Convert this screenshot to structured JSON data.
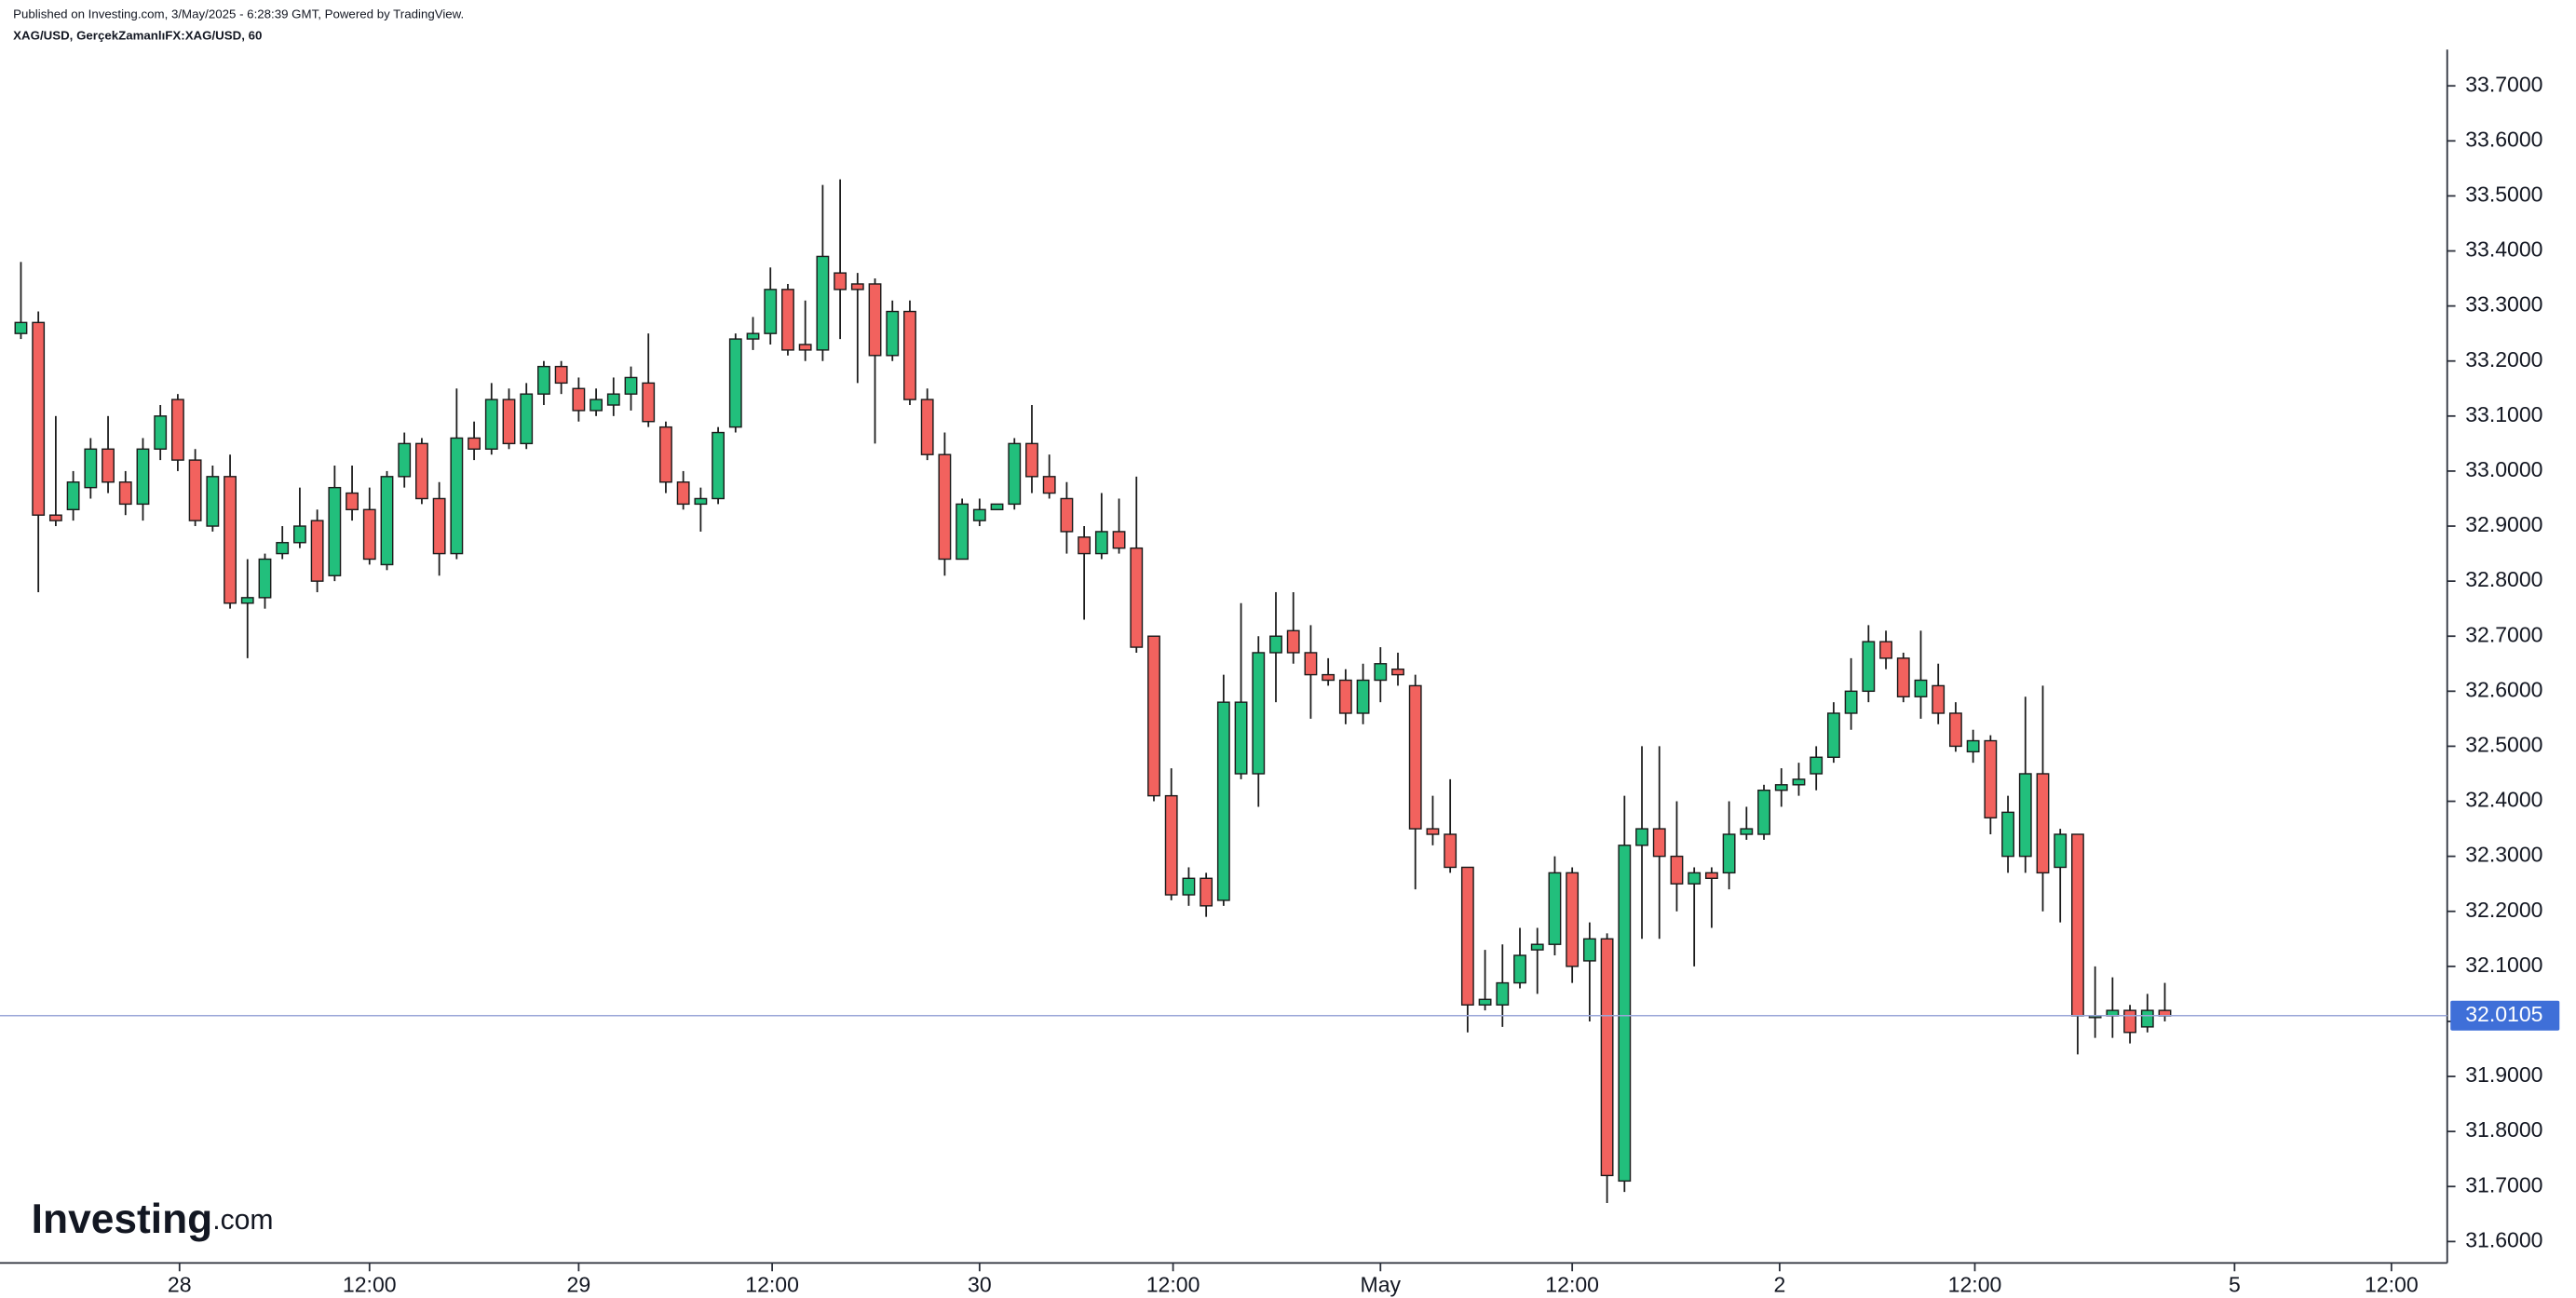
{
  "chart_data": {
    "type": "candlestick",
    "published": "Published on Investing.com, 3/May/2025 - 6:28:39 GMT, Powered by TradingView.",
    "title": "XAG/USD, GerçekZamanlıFX:XAG/USD, 60",
    "brand": "Investing",
    "brand_suffix": ".com",
    "up_color": "#22bf7c",
    "down_color": "#f2625e",
    "last_price": 32.0105,
    "last_price_color": "#3f6fd8",
    "ylim": [
      31.561,
      33.856
    ],
    "yticks": [
      {
        "value": 31.6,
        "label": "31.6000"
      },
      {
        "value": 31.7,
        "label": "31.7000"
      },
      {
        "value": 31.8,
        "label": "31.8000"
      },
      {
        "value": 31.9,
        "label": "31.9000"
      },
      {
        "value": 32.0,
        "label": "32.0000"
      },
      {
        "value": 32.1,
        "label": "32.1000"
      },
      {
        "value": 32.2,
        "label": "32.2000"
      },
      {
        "value": 32.3,
        "label": "32.3000"
      },
      {
        "value": 32.4,
        "label": "32.4000"
      },
      {
        "value": 32.5,
        "label": "32.5000"
      },
      {
        "value": 32.6,
        "label": "32.6000"
      },
      {
        "value": 32.7,
        "label": "32.7000"
      },
      {
        "value": 32.8,
        "label": "32.8000"
      },
      {
        "value": 32.9,
        "label": "32.9000"
      },
      {
        "value": 33.0,
        "label": "33.0000"
      },
      {
        "value": 33.1,
        "label": "33.1000"
      },
      {
        "value": 33.2,
        "label": "33.2000"
      },
      {
        "value": 33.3,
        "label": "33.3000"
      },
      {
        "value": 33.4,
        "label": "33.4000"
      },
      {
        "value": 33.5,
        "label": "33.5000"
      },
      {
        "value": 33.6,
        "label": "33.6000"
      },
      {
        "value": 33.7,
        "label": "33.7000"
      }
    ],
    "xlim": [
      -1.2,
      139.2
    ],
    "xticks": [
      {
        "value": 9.1,
        "label": "28"
      },
      {
        "value": 20.0,
        "label": "12:00"
      },
      {
        "value": 32.0,
        "label": "29"
      },
      {
        "value": 43.1,
        "label": "12:00"
      },
      {
        "value": 55.0,
        "label": "30"
      },
      {
        "value": 66.1,
        "label": "12:00"
      },
      {
        "value": 78.0,
        "label": "May"
      },
      {
        "value": 89.0,
        "label": "12:00"
      },
      {
        "value": 100.9,
        "label": "2"
      },
      {
        "value": 112.1,
        "label": "12:00"
      },
      {
        "value": 127.0,
        "label": "5"
      },
      {
        "value": 136.0,
        "label": "12:00"
      }
    ],
    "open": [
      33.25,
      33.27,
      32.92,
      32.93,
      32.97,
      33.04,
      32.98,
      32.94,
      33.04,
      33.13,
      33.02,
      32.9,
      32.99,
      32.76,
      32.77,
      32.85,
      32.87,
      32.91,
      32.81,
      32.96,
      32.93,
      32.83,
      32.99,
      33.05,
      32.95,
      32.85,
      33.06,
      33.04,
      33.13,
      33.05,
      33.14,
      33.19,
      33.15,
      33.11,
      33.12,
      33.14,
      33.16,
      33.08,
      32.98,
      32.94,
      32.95,
      33.08,
      33.24,
      33.25,
      33.33,
      33.23,
      33.22,
      33.36,
      33.34,
      33.34,
      33.21,
      33.29,
      33.13,
      33.03,
      32.84,
      32.91,
      32.93,
      32.94,
      33.05,
      32.99,
      32.95,
      32.88,
      32.85,
      32.89,
      32.86,
      32.7,
      32.41,
      32.23,
      32.26,
      32.22,
      32.45,
      32.45,
      32.67,
      32.71,
      32.67,
      32.63,
      32.62,
      32.56,
      32.62,
      32.64,
      32.61,
      32.35,
      32.34,
      32.28,
      32.03,
      32.03,
      32.07,
      32.13,
      32.14,
      32.27,
      32.11,
      32.15,
      31.71,
      32.32,
      32.35,
      32.3,
      32.25,
      32.27,
      32.27,
      32.34,
      32.34,
      32.42,
      32.43,
      32.45,
      32.48,
      32.56,
      32.6,
      32.69,
      32.66,
      32.59,
      32.61,
      32.56,
      32.49,
      32.51,
      32.3,
      32.3,
      32.45,
      32.28,
      32.34,
      32.01,
      32.01,
      32.02,
      31.99,
      32.02
    ],
    "high": [
      33.38,
      33.29,
      33.1,
      33.0,
      33.06,
      33.1,
      33.0,
      33.06,
      33.12,
      33.14,
      33.04,
      33.01,
      33.03,
      32.84,
      32.85,
      32.9,
      32.97,
      32.93,
      33.01,
      33.01,
      32.97,
      33.0,
      33.07,
      33.06,
      32.98,
      33.15,
      33.09,
      33.16,
      33.15,
      33.16,
      33.2,
      33.2,
      33.17,
      33.15,
      33.17,
      33.19,
      33.25,
      33.09,
      33.0,
      32.97,
      33.08,
      33.25,
      33.28,
      33.37,
      33.34,
      33.31,
      33.52,
      33.53,
      33.36,
      33.35,
      33.31,
      33.31,
      33.15,
      33.07,
      32.95,
      32.95,
      32.94,
      33.06,
      33.12,
      33.03,
      32.98,
      32.9,
      32.96,
      32.95,
      32.99,
      32.7,
      32.46,
      32.28,
      32.27,
      32.63,
      32.76,
      32.7,
      32.78,
      32.78,
      32.72,
      32.66,
      32.64,
      32.65,
      32.68,
      32.67,
      32.63,
      32.41,
      32.44,
      32.28,
      32.13,
      32.14,
      32.17,
      32.17,
      32.3,
      32.28,
      32.18,
      32.16,
      32.41,
      32.5,
      32.5,
      32.4,
      32.28,
      32.28,
      32.4,
      32.39,
      32.43,
      32.46,
      32.47,
      32.5,
      32.58,
      32.66,
      32.72,
      32.71,
      32.67,
      32.71,
      32.65,
      32.58,
      32.53,
      32.52,
      32.41,
      32.59,
      32.61,
      32.35,
      32.34,
      32.1,
      32.08,
      32.03,
      32.05,
      32.07
    ],
    "low": [
      33.24,
      32.78,
      32.9,
      32.91,
      32.95,
      32.96,
      32.92,
      32.91,
      33.02,
      33.0,
      32.9,
      32.89,
      32.75,
      32.66,
      32.75,
      32.84,
      32.86,
      32.78,
      32.8,
      32.91,
      32.83,
      32.82,
      32.97,
      32.94,
      32.81,
      32.84,
      33.02,
      33.03,
      33.04,
      33.04,
      33.12,
      33.14,
      33.09,
      33.1,
      33.1,
      33.11,
      33.08,
      32.96,
      32.93,
      32.89,
      32.94,
      33.07,
      33.22,
      33.23,
      33.21,
      33.2,
      33.2,
      33.24,
      33.16,
      33.05,
      33.2,
      33.12,
      33.02,
      32.81,
      32.84,
      32.9,
      32.93,
      32.93,
      32.96,
      32.95,
      32.85,
      32.73,
      32.84,
      32.85,
      32.67,
      32.4,
      32.22,
      32.21,
      32.19,
      32.21,
      32.44,
      32.39,
      32.58,
      32.65,
      32.55,
      32.61,
      32.54,
      32.54,
      32.58,
      32.61,
      32.24,
      32.32,
      32.27,
      31.98,
      32.02,
      31.99,
      32.06,
      32.05,
      32.12,
      32.07,
      32.0,
      31.67,
      31.69,
      32.15,
      32.15,
      32.2,
      32.1,
      32.17,
      32.24,
      32.33,
      32.33,
      32.39,
      32.41,
      32.42,
      32.47,
      32.53,
      32.58,
      32.64,
      32.58,
      32.55,
      32.54,
      32.49,
      32.47,
      32.34,
      32.27,
      32.27,
      32.2,
      32.18,
      31.94,
      31.97,
      31.97,
      31.96,
      31.98,
      32.0
    ],
    "close": [
      33.27,
      32.92,
      32.91,
      32.98,
      33.04,
      32.98,
      32.94,
      33.04,
      33.1,
      33.02,
      32.91,
      32.99,
      32.76,
      32.77,
      32.84,
      32.87,
      32.9,
      32.8,
      32.97,
      32.93,
      32.84,
      32.99,
      33.05,
      32.95,
      32.85,
      33.06,
      33.04,
      33.13,
      33.05,
      33.14,
      33.19,
      33.16,
      33.11,
      33.13,
      33.14,
      33.17,
      33.09,
      32.98,
      32.94,
      32.95,
      33.07,
      33.24,
      33.25,
      33.33,
      33.22,
      33.22,
      33.39,
      33.33,
      33.33,
      33.21,
      33.29,
      33.13,
      33.03,
      32.84,
      32.94,
      32.93,
      32.94,
      33.05,
      32.99,
      32.96,
      32.89,
      32.85,
      32.89,
      32.86,
      32.68,
      32.41,
      32.23,
      32.26,
      32.21,
      32.58,
      32.58,
      32.67,
      32.7,
      32.67,
      32.63,
      32.62,
      32.56,
      32.62,
      32.65,
      32.63,
      32.35,
      32.34,
      32.28,
      32.03,
      32.04,
      32.07,
      32.12,
      32.14,
      32.27,
      32.1,
      32.15,
      31.72,
      32.32,
      32.35,
      32.3,
      32.25,
      32.27,
      32.26,
      32.34,
      32.35,
      32.42,
      32.43,
      32.44,
      32.48,
      32.56,
      32.6,
      32.69,
      32.66,
      32.59,
      32.62,
      32.56,
      32.5,
      32.51,
      32.37,
      32.38,
      32.45,
      32.27,
      32.34,
      32.01,
      32.01,
      32.02,
      31.98,
      32.02,
      32.01
    ]
  }
}
